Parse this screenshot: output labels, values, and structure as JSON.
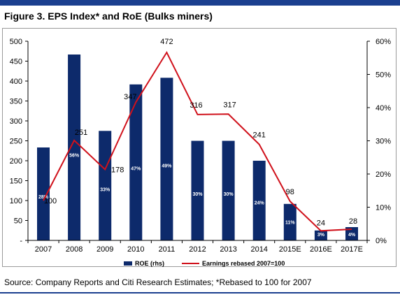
{
  "figure": {
    "title": "Figure 3. EPS Index* and RoE (Bulks miners)",
    "source": "Source: Company Reports and Citi Research Estimates; *Rebased to 100 for 2007"
  },
  "colors": {
    "bar": "#0d2a6b",
    "line": "#d0111b",
    "accent_rule": "#1b3f8f"
  },
  "chart_data": {
    "type": "bar",
    "categories": [
      "2007",
      "2008",
      "2009",
      "2010",
      "2011",
      "2012",
      "2013",
      "2014",
      "2015E",
      "2016E",
      "2017E"
    ],
    "series": [
      {
        "name": "ROE (rhs)",
        "type": "bar",
        "axis": "right",
        "values": [
          28,
          56,
          33,
          47,
          49,
          30,
          30,
          24,
          11,
          3,
          4
        ],
        "data_labels": [
          "28%",
          "56%",
          "33%",
          "47%",
          "49%",
          "30%",
          "30%",
          "24%",
          "11%",
          "3%",
          "4%"
        ]
      },
      {
        "name": "Earnings rebased 2007=100",
        "type": "line",
        "axis": "left",
        "values": [
          100,
          251,
          178,
          347,
          472,
          316,
          317,
          241,
          98,
          24,
          28
        ],
        "data_labels": [
          "100",
          "251",
          "178",
          "347",
          "472",
          "316",
          "317",
          "241",
          "98",
          "24",
          "28"
        ]
      }
    ],
    "y_left": {
      "min": 0,
      "max": 500,
      "ticks": [
        0,
        50,
        100,
        150,
        200,
        250,
        300,
        350,
        400,
        450,
        500
      ],
      "tick_labels": [
        "-",
        "50",
        "100",
        "150",
        "200",
        "250",
        "300",
        "350",
        "400",
        "450",
        "500"
      ]
    },
    "y_right": {
      "min": 0,
      "max": 60,
      "ticks": [
        0,
        10,
        20,
        30,
        40,
        50,
        60
      ],
      "tick_labels": [
        "0%",
        "10%",
        "20%",
        "30%",
        "40%",
        "50%",
        "60%"
      ]
    },
    "grid": false,
    "legend_position": "bottom"
  }
}
